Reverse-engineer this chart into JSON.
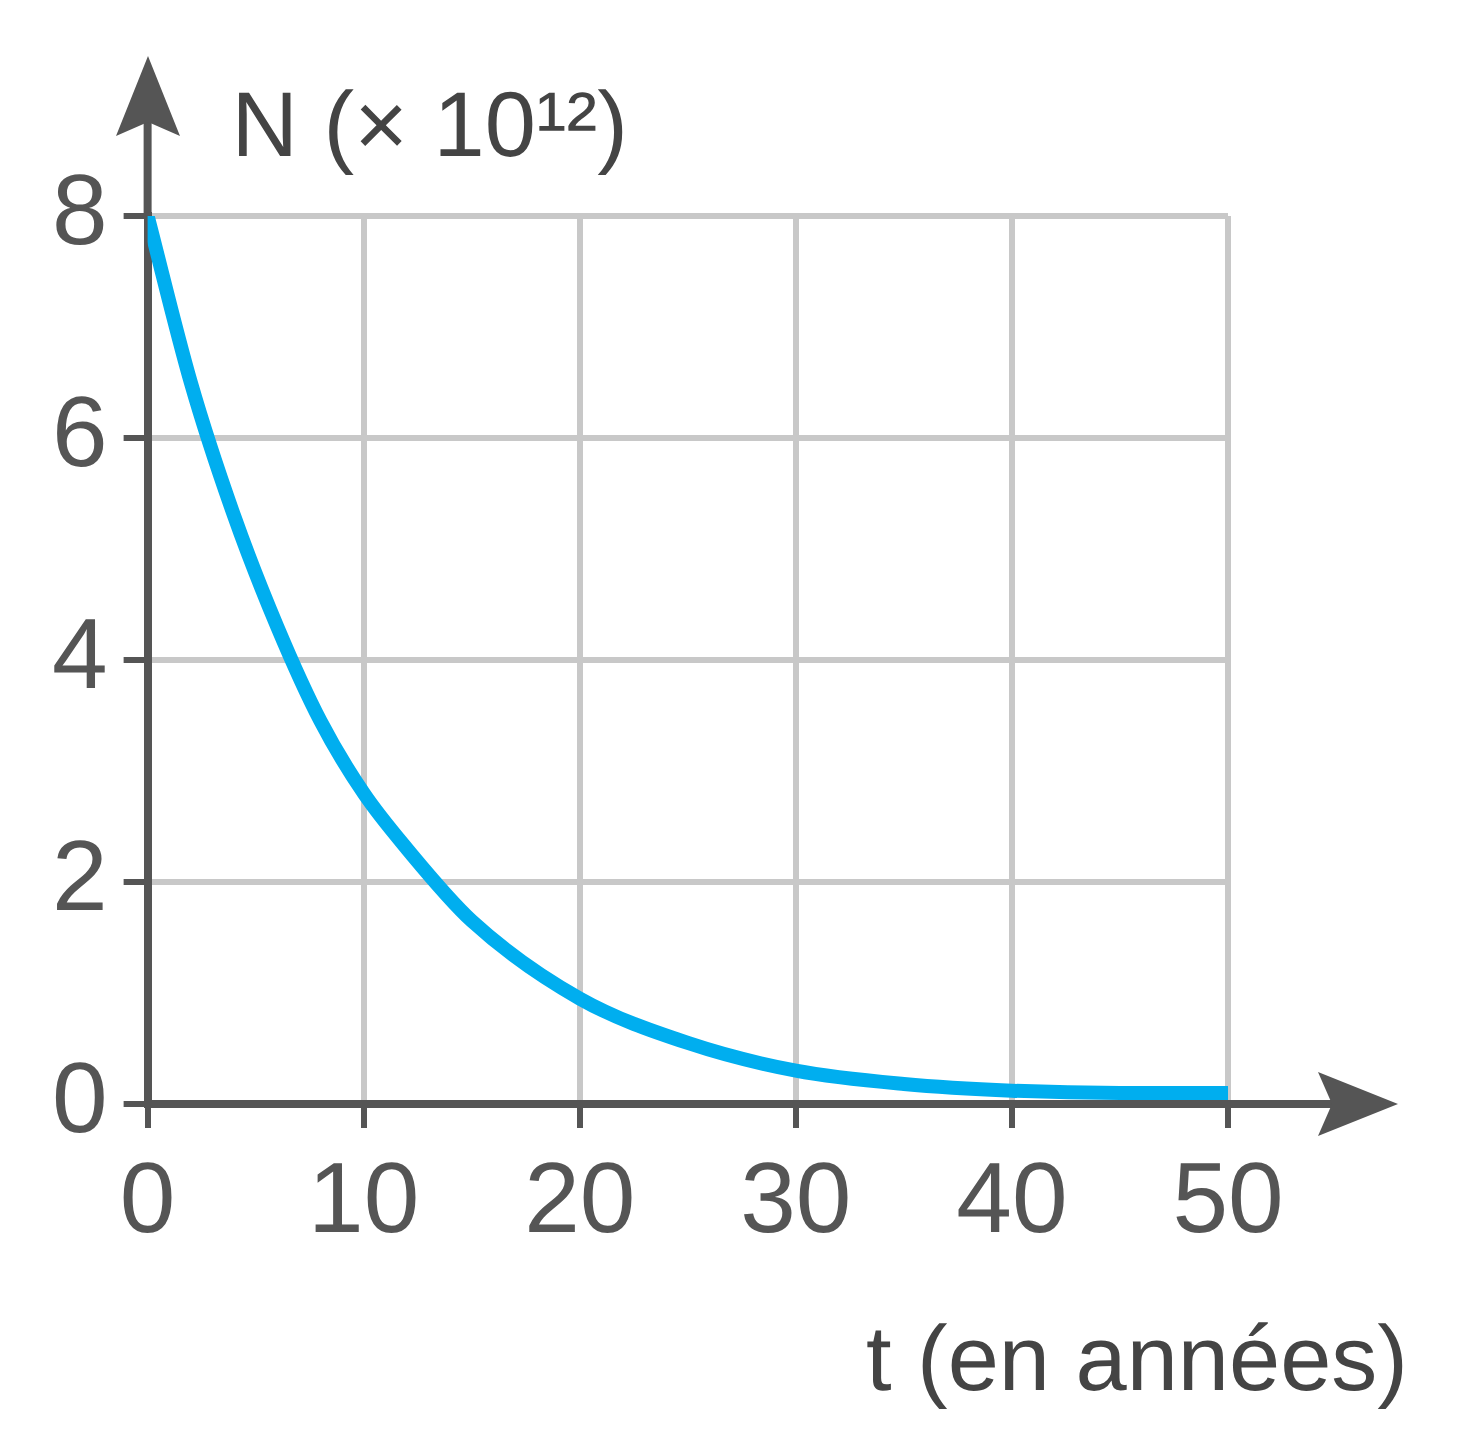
{
  "chart_data": {
    "type": "line",
    "xlabel": "t (en années)",
    "ylabel": "N (× 10¹²)",
    "series": [
      {
        "color": "#00aeef",
        "x": [
          0,
          2,
          4,
          6,
          8,
          10,
          12,
          15,
          20,
          25,
          30,
          35,
          40,
          45,
          50
        ],
        "values": [
          8,
          6.5,
          5.3,
          4.3,
          3.45,
          2.8,
          2.3,
          1.65,
          0.95,
          0.55,
          0.3,
          0.18,
          0.12,
          0.1,
          0.1
        ]
      }
    ],
    "xlim": [
      0,
      50
    ],
    "xticks": [
      0,
      10,
      20,
      30,
      40,
      50
    ],
    "ylim": [
      0,
      8
    ],
    "yticks": [
      0,
      2,
      4,
      6,
      8
    ],
    "grid": true,
    "marker": "none",
    "line_style": "solid",
    "legend": false
  }
}
